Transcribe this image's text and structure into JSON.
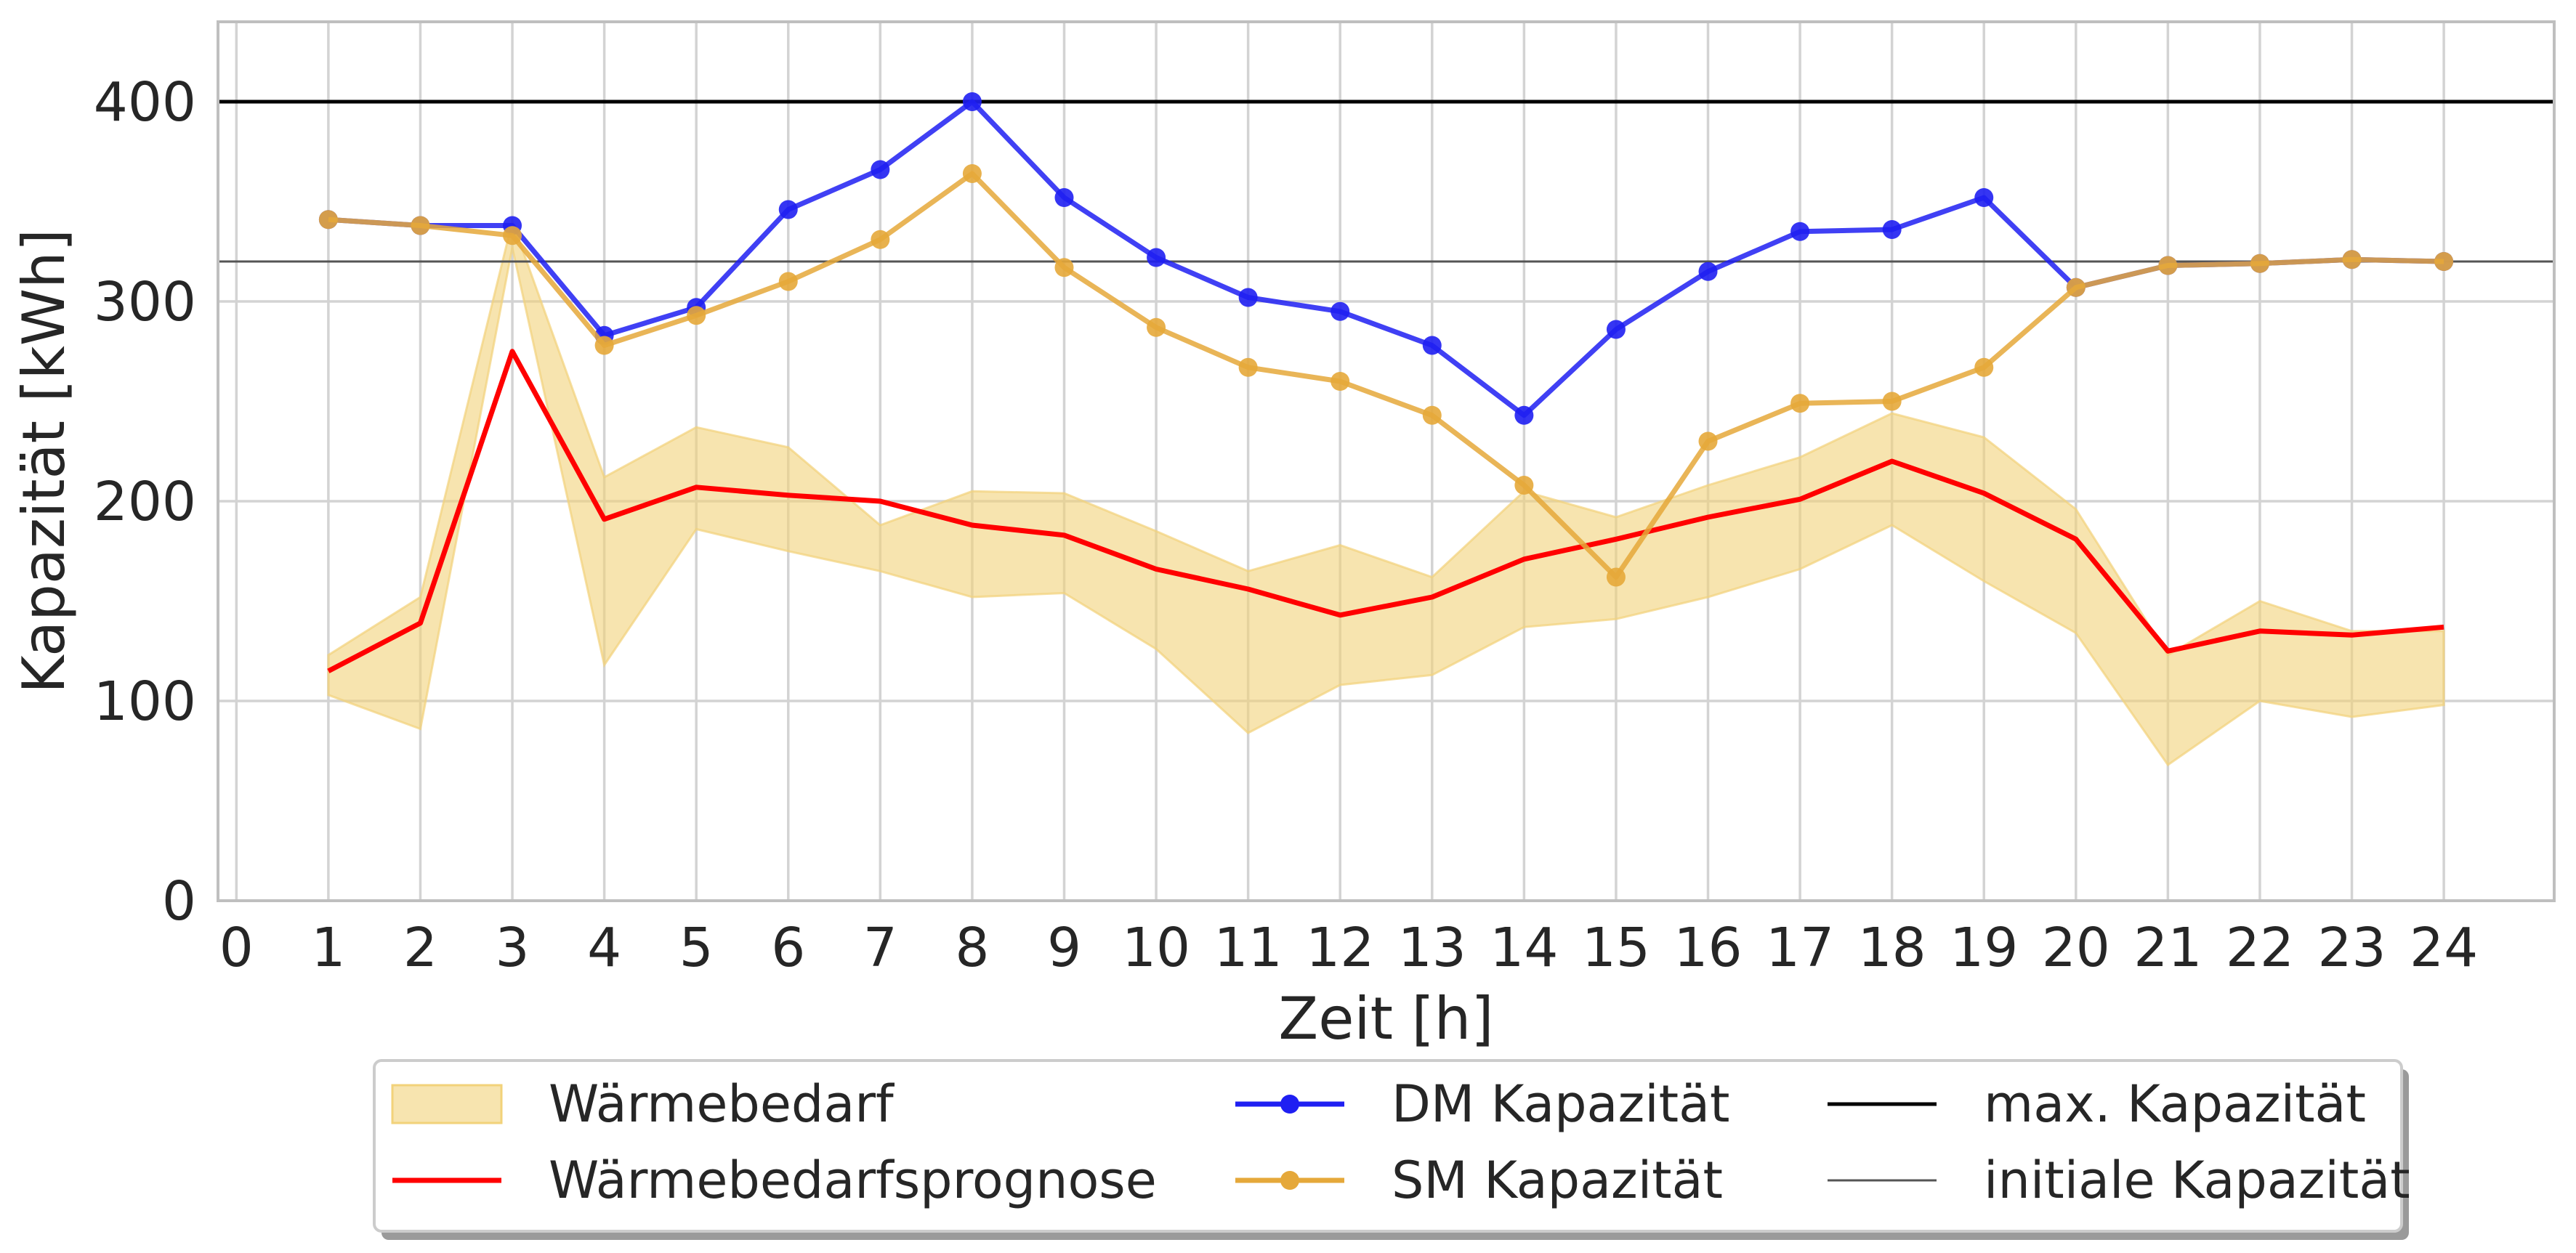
{
  "chart_data": {
    "type": "line",
    "title": "",
    "xlabel": "Zeit [h]",
    "ylabel": "Kapazität [kWh]",
    "xlim": [
      -0.2,
      25.2
    ],
    "ylim": [
      0,
      440
    ],
    "xticks": [
      "0",
      "1",
      "2",
      "3",
      "4",
      "5",
      "6",
      "7",
      "8",
      "9",
      "10",
      "11",
      "12",
      "13",
      "14",
      "15",
      "16",
      "17",
      "18",
      "19",
      "20",
      "21",
      "22",
      "23",
      "24"
    ],
    "yticks": [
      "0",
      "100",
      "200",
      "300",
      "400"
    ],
    "grid": true,
    "legend_position": "bottom-center",
    "x": [
      1,
      2,
      3,
      4,
      5,
      6,
      7,
      8,
      9,
      10,
      11,
      12,
      13,
      14,
      15,
      16,
      17,
      18,
      19,
      20,
      21,
      22,
      23,
      24
    ],
    "series": [
      {
        "name": "Wärmebedarf",
        "kind": "band",
        "color": "#f2d27a",
        "lower": [
          103,
          86,
          327,
          118,
          186,
          175,
          165,
          152,
          154,
          126,
          84,
          108,
          113,
          137,
          141,
          152,
          166,
          188,
          160,
          134,
          68,
          100,
          92,
          98
        ],
        "upper": [
          123,
          152,
          340,
          212,
          237,
          227,
          188,
          205,
          204,
          185,
          165,
          178,
          162,
          205,
          192,
          208,
          222,
          244,
          232,
          196,
          123,
          150,
          135,
          135
        ]
      },
      {
        "name": "Wärmebedarfsprognose",
        "kind": "line",
        "color": "#ff0000",
        "values": [
          115,
          139,
          275,
          191,
          207,
          203,
          200,
          188,
          183,
          166,
          156,
          143,
          152,
          171,
          181,
          192,
          201,
          220,
          204,
          181,
          125,
          135,
          133,
          137
        ]
      },
      {
        "name": "DM Kapazität",
        "kind": "line-marker",
        "color": "#1f1ff2",
        "values": [
          341,
          338,
          338,
          283,
          297,
          346,
          366,
          400,
          352,
          322,
          302,
          295,
          278,
          243,
          286,
          315,
          335,
          336,
          352,
          307,
          318,
          319,
          321,
          320
        ]
      },
      {
        "name": "SM Kapazität",
        "kind": "line-marker",
        "color": "#e5a83a",
        "values": [
          341,
          338,
          333,
          278,
          293,
          310,
          331,
          364,
          317,
          287,
          267,
          260,
          243,
          208,
          162,
          230,
          249,
          250,
          267,
          307,
          318,
          319,
          321,
          320
        ]
      },
      {
        "name": "max. Kapazität",
        "kind": "hline",
        "color": "#000000",
        "value": 400
      },
      {
        "name": "initiale Kapazität",
        "kind": "hline",
        "color": "#555555",
        "value": 320
      }
    ]
  }
}
